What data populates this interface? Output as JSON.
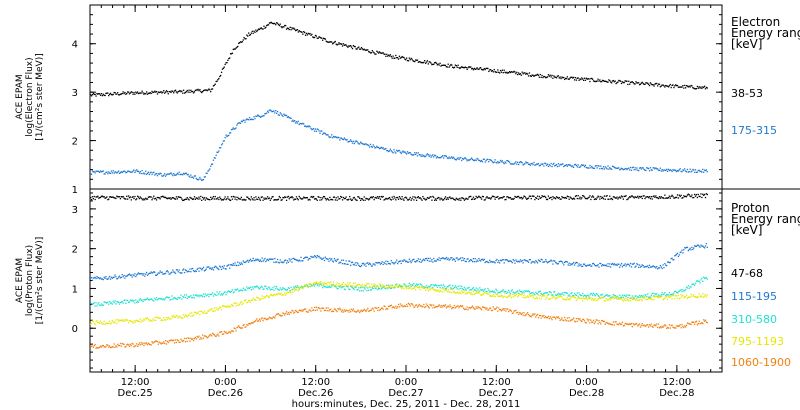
{
  "chart_data": [
    {
      "type": "scatter",
      "panel": "electron",
      "ylabel_lines": [
        "ACE EPAM",
        "log(Electron Flux)",
        "[1/(cm²s ster MeV)]"
      ],
      "yticks": [
        "1",
        "2",
        "3",
        "4"
      ],
      "ylim": [
        1,
        4.8
      ],
      "xlim": [
        0,
        84
      ],
      "legend_title_lines": [
        "Electron",
        "Energy ranges",
        "[keV]"
      ],
      "series": [
        {
          "name": "38-53",
          "color": "#000000",
          "points": [
            [
              0,
              2.95
            ],
            [
              6,
              3.0
            ],
            [
              12,
              3.02
            ],
            [
              16,
              3.05
            ],
            [
              17,
              3.3
            ],
            [
              18,
              3.6
            ],
            [
              19,
              3.9
            ],
            [
              21,
              4.2
            ],
            [
              23,
              4.35
            ],
            [
              24,
              4.45
            ],
            [
              26,
              4.35
            ],
            [
              28,
              4.25
            ],
            [
              32,
              4.05
            ],
            [
              36,
              3.9
            ],
            [
              40,
              3.75
            ],
            [
              44,
              3.65
            ],
            [
              48,
              3.55
            ],
            [
              54,
              3.45
            ],
            [
              60,
              3.35
            ],
            [
              66,
              3.27
            ],
            [
              72,
              3.2
            ],
            [
              78,
              3.13
            ],
            [
              82,
              3.1
            ]
          ]
        },
        {
          "name": "175-315",
          "color": "#1e78d2",
          "points": [
            [
              0,
              1.35
            ],
            [
              6,
              1.38
            ],
            [
              10,
              1.3
            ],
            [
              12,
              1.35
            ],
            [
              15,
              1.2
            ],
            [
              16,
              1.5
            ],
            [
              18,
              2.1
            ],
            [
              20,
              2.4
            ],
            [
              23,
              2.55
            ],
            [
              24,
              2.65
            ],
            [
              26,
              2.5
            ],
            [
              28,
              2.35
            ],
            [
              32,
              2.1
            ],
            [
              36,
              1.95
            ],
            [
              40,
              1.8
            ],
            [
              44,
              1.72
            ],
            [
              48,
              1.65
            ],
            [
              54,
              1.58
            ],
            [
              60,
              1.52
            ],
            [
              66,
              1.48
            ],
            [
              72,
              1.43
            ],
            [
              78,
              1.4
            ],
            [
              82,
              1.38
            ]
          ]
        }
      ]
    },
    {
      "type": "scatter",
      "panel": "proton",
      "ylabel_lines": [
        "ACE EPAM",
        "log(Proton Flux)",
        "[1/(cm²s ster MeV)]"
      ],
      "yticks": [
        "0",
        "1",
        "2",
        "3"
      ],
      "ylim": [
        -1.1,
        3.5
      ],
      "xlim": [
        0,
        84
      ],
      "legend_title_lines": [
        "Proton",
        "Energy ranges",
        "[keV]"
      ],
      "series": [
        {
          "name": "47-68",
          "color": "#000000",
          "points": [
            [
              0,
              3.3
            ],
            [
              12,
              3.28
            ],
            [
              24,
              3.28
            ],
            [
              36,
              3.28
            ],
            [
              48,
              3.28
            ],
            [
              60,
              3.3
            ],
            [
              72,
              3.3
            ],
            [
              82,
              3.35
            ]
          ]
        },
        {
          "name": "115-195",
          "color": "#1e78d2",
          "points": [
            [
              0,
              1.25
            ],
            [
              6,
              1.35
            ],
            [
              12,
              1.45
            ],
            [
              18,
              1.55
            ],
            [
              22,
              1.75
            ],
            [
              26,
              1.7
            ],
            [
              30,
              1.8
            ],
            [
              36,
              1.6
            ],
            [
              42,
              1.7
            ],
            [
              48,
              1.75
            ],
            [
              54,
              1.7
            ],
            [
              60,
              1.7
            ],
            [
              66,
              1.6
            ],
            [
              72,
              1.6
            ],
            [
              76,
              1.55
            ],
            [
              79,
              2.0
            ],
            [
              82,
              2.1
            ]
          ]
        },
        {
          "name": "310-580",
          "color": "#1ee0d0",
          "points": [
            [
              0,
              0.6
            ],
            [
              6,
              0.7
            ],
            [
              12,
              0.8
            ],
            [
              18,
              0.9
            ],
            [
              22,
              1.05
            ],
            [
              26,
              1.0
            ],
            [
              30,
              1.1
            ],
            [
              36,
              1.0
            ],
            [
              42,
              1.1
            ],
            [
              48,
              1.05
            ],
            [
              54,
              0.95
            ],
            [
              60,
              0.9
            ],
            [
              66,
              0.85
            ],
            [
              72,
              0.8
            ],
            [
              78,
              0.9
            ],
            [
              82,
              1.3
            ]
          ]
        },
        {
          "name": "795-1193",
          "color": "#e6e600",
          "points": [
            [
              0,
              0.15
            ],
            [
              6,
              0.2
            ],
            [
              12,
              0.3
            ],
            [
              18,
              0.55
            ],
            [
              22,
              0.75
            ],
            [
              26,
              0.9
            ],
            [
              30,
              1.15
            ],
            [
              36,
              1.1
            ],
            [
              42,
              1.05
            ],
            [
              48,
              0.95
            ],
            [
              54,
              0.85
            ],
            [
              60,
              0.8
            ],
            [
              66,
              0.75
            ],
            [
              72,
              0.75
            ],
            [
              78,
              0.8
            ],
            [
              82,
              0.85
            ]
          ]
        },
        {
          "name": "1060-1900",
          "color": "#f08010",
          "points": [
            [
              0,
              -0.45
            ],
            [
              6,
              -0.4
            ],
            [
              12,
              -0.3
            ],
            [
              18,
              -0.1
            ],
            [
              22,
              0.2
            ],
            [
              26,
              0.4
            ],
            [
              30,
              0.5
            ],
            [
              36,
              0.45
            ],
            [
              42,
              0.6
            ],
            [
              48,
              0.55
            ],
            [
              54,
              0.5
            ],
            [
              60,
              0.3
            ],
            [
              66,
              0.2
            ],
            [
              72,
              0.1
            ],
            [
              78,
              0.05
            ],
            [
              82,
              0.2
            ]
          ]
        }
      ]
    }
  ],
  "x_axis": {
    "ticks": [
      {
        "x": 6,
        "time": "12:00",
        "date": "Dec.25"
      },
      {
        "x": 18,
        "time": "0:00",
        "date": "Dec.26"
      },
      {
        "x": 30,
        "time": "12:00",
        "date": "Dec.26"
      },
      {
        "x": 42,
        "time": "0:00",
        "date": "Dec.27"
      },
      {
        "x": 54,
        "time": "12:00",
        "date": "Dec.27"
      },
      {
        "x": 66,
        "time": "0:00",
        "date": "Dec.28"
      },
      {
        "x": 78,
        "time": "12:00",
        "date": "Dec.28"
      }
    ],
    "xlabel": "hours:minutes, Dec. 25, 2011 - Dec. 28, 2011"
  }
}
